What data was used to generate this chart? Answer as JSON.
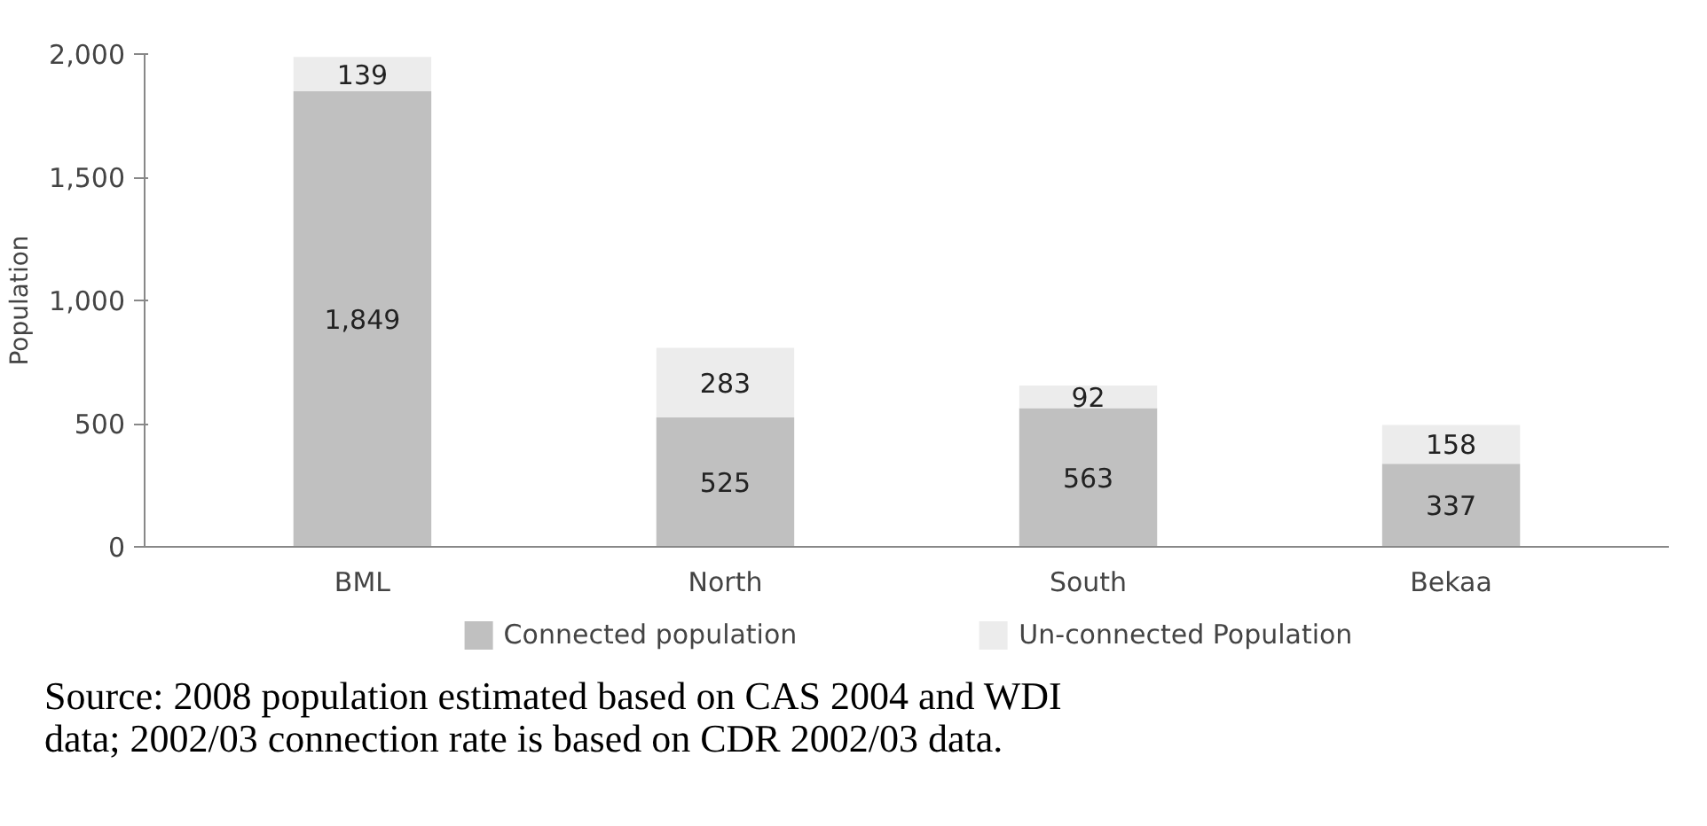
{
  "chart_data": {
    "type": "bar",
    "stacked": true,
    "ylabel": "Population",
    "categories": [
      "BML",
      "North",
      "South",
      "Bekaa"
    ],
    "series": [
      {
        "name": "Connected population",
        "color": "#c0c0c0",
        "values": [
          1849,
          525,
          563,
          337
        ],
        "value_labels": [
          "1,849",
          "525",
          "563",
          "337"
        ]
      },
      {
        "name": "Un-connected Population",
        "color": "#ececec",
        "values": [
          139,
          283,
          92,
          158
        ],
        "value_labels": [
          "139",
          "283",
          "92",
          "158"
        ]
      }
    ],
    "ylim": [
      0,
      2000
    ],
    "yticks": [
      0,
      {
        "value": 500,
        "label": "500"
      },
      {
        "value": 1000,
        "label": "1,000"
      },
      {
        "value": 1500,
        "label": "1,500"
      },
      {
        "value": 2000,
        "label": "2,000"
      }
    ],
    "grid": false,
    "legend": "bottom",
    "annotations": [
      "Source:  2008 population estimated based on CAS 2004 and WDI data; 2002/03 connection rate is based on CDR 2002/03 data."
    ]
  }
}
